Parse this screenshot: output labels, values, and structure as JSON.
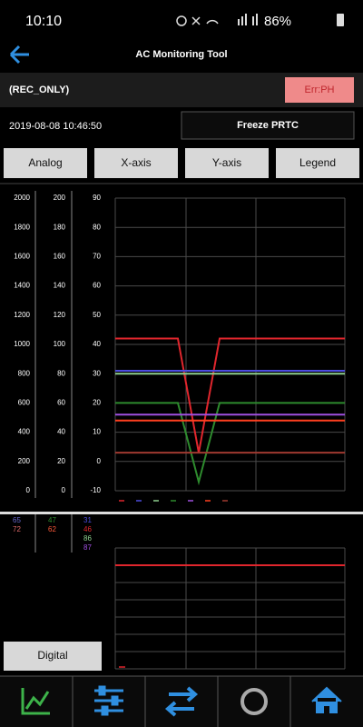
{
  "status": {
    "time": "10:10",
    "battery": "86%"
  },
  "header": {
    "title": "AC Monitoring Tool"
  },
  "mode": "(REC_ONLY)",
  "error_button": "Err:PH",
  "timestamp": "2019-08-08 10:46:50",
  "freeze_button": "Freeze PRTC",
  "toolbar": [
    "Analog",
    "X-axis",
    "Y-axis",
    "Legend"
  ],
  "chart": {
    "axes": [
      {
        "ticks": [
          2000,
          1800,
          1600,
          1400,
          1200,
          1000,
          800,
          600,
          400,
          200,
          0
        ]
      },
      {
        "ticks": [
          200,
          180,
          160,
          140,
          120,
          100,
          80,
          60,
          40,
          20,
          0
        ]
      },
      {
        "ticks": [
          90,
          80,
          70,
          60,
          50,
          40,
          30,
          20,
          10,
          0,
          -10
        ]
      }
    ],
    "ylim": [
      -10,
      90
    ],
    "series": [
      {
        "color": "#e0262d",
        "values": [
          42,
          42,
          42,
          42,
          3,
          42,
          42,
          42,
          42,
          42,
          42,
          42
        ]
      },
      {
        "color": "#4d4de0",
        "values": [
          31,
          31,
          31,
          31,
          31,
          31,
          31,
          31,
          31,
          31,
          31,
          31
        ]
      },
      {
        "color": "#8fd08f",
        "values": [
          30,
          30,
          30,
          30,
          30,
          30,
          30,
          30,
          30,
          30,
          30,
          30
        ]
      },
      {
        "color": "#2e8b2e",
        "values": [
          20,
          20,
          20,
          20,
          -7,
          20,
          20,
          20,
          20,
          20,
          20,
          20
        ]
      },
      {
        "color": "#a050e0",
        "values": [
          16,
          16,
          16,
          16,
          16,
          16,
          16,
          16,
          16,
          16,
          16,
          16
        ]
      },
      {
        "color": "#ff4020",
        "values": [
          14,
          14,
          14,
          14,
          14,
          14,
          14,
          14,
          14,
          14,
          14,
          14
        ]
      },
      {
        "color": "#a03a30",
        "values": [
          3,
          3,
          3,
          3,
          3,
          3,
          3,
          3,
          3,
          3,
          3,
          3
        ]
      }
    ]
  },
  "readouts": [
    [
      {
        "text": "65",
        "color": "#6a6ad0"
      },
      {
        "text": "72",
        "color": "#e06a6a"
      }
    ],
    [
      {
        "text": "47",
        "color": "#2e8b2e"
      },
      {
        "text": "62",
        "color": "#ff5a3a"
      }
    ],
    [
      {
        "text": "31",
        "color": "#4d4de0"
      },
      {
        "text": "46",
        "color": "#e0262d"
      },
      {
        "text": "86",
        "color": "#8fd08f"
      },
      {
        "text": "87",
        "color": "#a050e0"
      }
    ]
  ],
  "digital_button": "Digital"
}
